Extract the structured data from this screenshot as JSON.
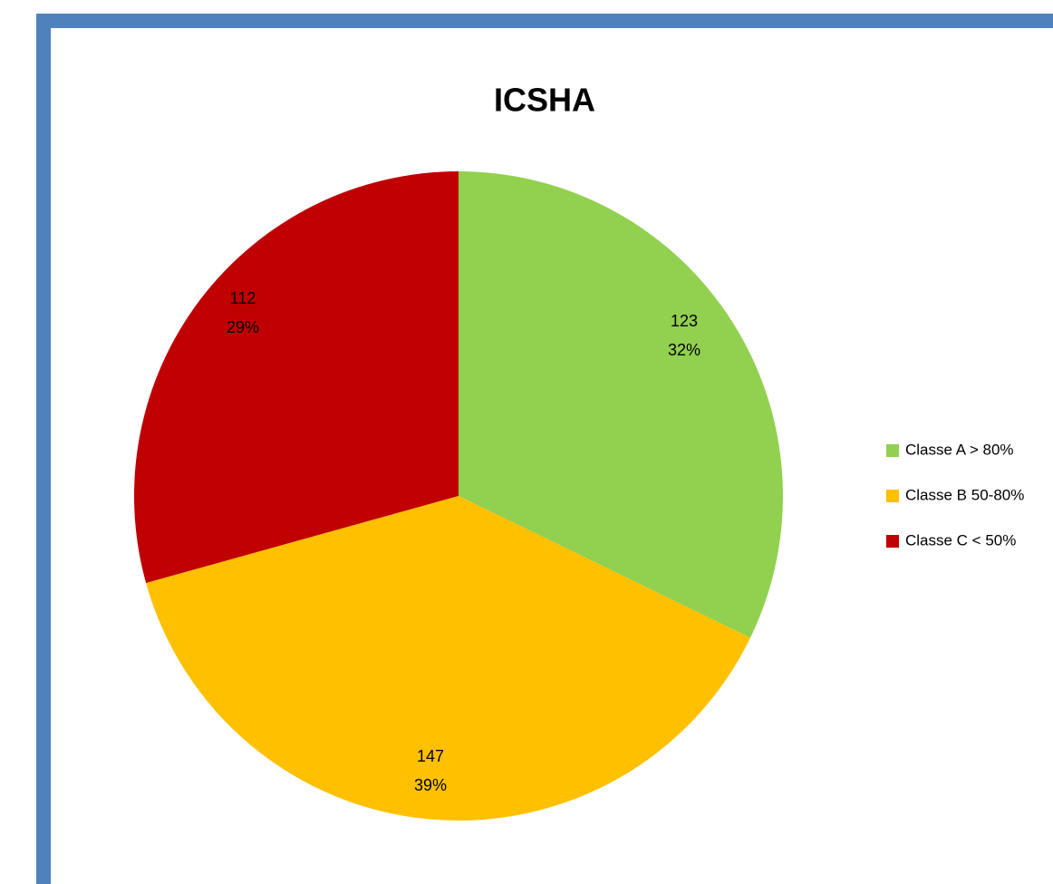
{
  "chart_data": {
    "type": "pie",
    "title": "ICSHA",
    "categories": [
      "Classe A > 80%",
      "Classe B 50-80%",
      "Classe C < 50%"
    ],
    "values": [
      123,
      147,
      112
    ],
    "percent_labels": [
      "32%",
      "39%",
      "29%"
    ],
    "colors": [
      "#92d050",
      "#ffc000",
      "#c00000"
    ],
    "legend": "right"
  }
}
